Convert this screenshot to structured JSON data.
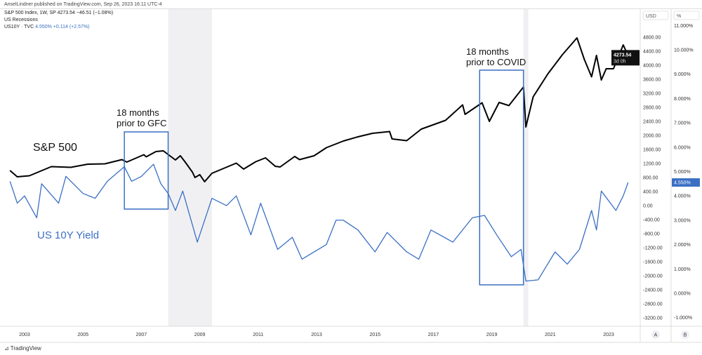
{
  "publisher": "AnselLindner published on TradingView.com, Sep 26, 2023 16:11 UTC-4",
  "legend": {
    "line1": "S&P 500 Index, 1W, SP  4273.54  −46.51 (−1.08%)",
    "line2": "US Recessions",
    "line3_name": "US10Y · TVC",
    "line3_value": "4.550%  +0.114 (+2.57%)"
  },
  "footer": {
    "logo": "TradingView"
  },
  "chart_data": {
    "type": "line",
    "x_ticks": [
      "2003",
      "2005",
      "2007",
      "2009",
      "2011",
      "2013",
      "2015",
      "2017",
      "2019",
      "2021",
      "2023"
    ],
    "left_axis": {
      "header": "USD",
      "ticks": [
        4800,
        4400,
        4000,
        3600,
        3200,
        2800,
        2400,
        2000,
        1600,
        1200,
        800,
        400,
        0,
        -400,
        -800,
        -1200,
        -1600,
        -2000,
        -2400,
        -2800,
        -3200
      ],
      "ylim": [
        -3400,
        5100
      ],
      "badge": "A"
    },
    "right_axis": {
      "header": "%",
      "ticks": [
        "11.000%",
        "10.000%",
        "9.000%",
        "8.000%",
        "7.000%",
        "6.000%",
        "5.000%",
        "4.000%",
        "3.000%",
        "2.000%",
        "1.000%",
        "0.000%",
        "-1.000%"
      ],
      "ylim": [
        -1.2,
        11.2
      ],
      "badge": "B"
    },
    "last_price_label": {
      "value": "4273.54",
      "countdown": "3d 0h"
    },
    "last_yield_label": "4.550%",
    "recessions": [
      [
        "2007-12",
        "2009-06"
      ],
      [
        "2020-02",
        "2020-04"
      ]
    ],
    "annotations": [
      {
        "text": [
          "18 months",
          "prior to GFC"
        ],
        "box": [
          "2006-06",
          "2007-12"
        ]
      },
      {
        "text": [
          "18 months",
          "prior to COVID"
        ],
        "box": [
          "2018-08",
          "2020-02"
        ]
      },
      {
        "text": [
          "S&P 500"
        ]
      },
      {
        "text": [
          "US 10Y Yield"
        ]
      }
    ],
    "series": [
      {
        "name": "S&P 500",
        "color": "#000000",
        "axis": "left",
        "points": [
          [
            "2002-07",
            1000
          ],
          [
            "2002-10",
            820
          ],
          [
            "2003-03",
            850
          ],
          [
            "2003-12",
            1110
          ],
          [
            "2004-08",
            1090
          ],
          [
            "2005-03",
            1180
          ],
          [
            "2005-10",
            1190
          ],
          [
            "2006-05",
            1310
          ],
          [
            "2006-07",
            1240
          ],
          [
            "2007-02",
            1450
          ],
          [
            "2007-03",
            1390
          ],
          [
            "2007-07",
            1540
          ],
          [
            "2007-10",
            1560
          ],
          [
            "2008-03",
            1300
          ],
          [
            "2008-05",
            1420
          ],
          [
            "2008-07",
            1240
          ],
          [
            "2008-10",
            950
          ],
          [
            "2008-11",
            800
          ],
          [
            "2009-01",
            880
          ],
          [
            "2009-03",
            680
          ],
          [
            "2009-06",
            920
          ],
          [
            "2010-04",
            1210
          ],
          [
            "2010-07",
            1040
          ],
          [
            "2010-12",
            1250
          ],
          [
            "2011-04",
            1360
          ],
          [
            "2011-08",
            1120
          ],
          [
            "2011-10",
            1100
          ],
          [
            "2012-04",
            1400
          ],
          [
            "2012-06",
            1310
          ],
          [
            "2012-12",
            1420
          ],
          [
            "2013-05",
            1650
          ],
          [
            "2013-12",
            1840
          ],
          [
            "2014-06",
            1960
          ],
          [
            "2014-12",
            2060
          ],
          [
            "2015-07",
            2110
          ],
          [
            "2015-08",
            1900
          ],
          [
            "2016-02",
            1850
          ],
          [
            "2016-08",
            2180
          ],
          [
            "2017-06",
            2430
          ],
          [
            "2018-01",
            2870
          ],
          [
            "2018-02",
            2600
          ],
          [
            "2018-09",
            2930
          ],
          [
            "2018-12",
            2400
          ],
          [
            "2019-04",
            2940
          ],
          [
            "2019-08",
            2850
          ],
          [
            "2020-02",
            3380
          ],
          [
            "2020-03",
            2240
          ],
          [
            "2020-06",
            3100
          ],
          [
            "2020-12",
            3750
          ],
          [
            "2021-06",
            4300
          ],
          [
            "2021-12",
            4780
          ],
          [
            "2022-03",
            4170
          ],
          [
            "2022-06",
            3670
          ],
          [
            "2022-08",
            4280
          ],
          [
            "2022-10",
            3580
          ],
          [
            "2022-12",
            3900
          ],
          [
            "2023-03",
            3900
          ],
          [
            "2023-07",
            4580
          ],
          [
            "2023-09",
            4273.54
          ]
        ]
      },
      {
        "name": "US 10Y Yield",
        "color": "#3a6fc4",
        "axis": "right",
        "points": [
          [
            "2002-07",
            4.6
          ],
          [
            "2002-10",
            3.7
          ],
          [
            "2003-01",
            4.0
          ],
          [
            "2003-06",
            3.1
          ],
          [
            "2003-08",
            4.5
          ],
          [
            "2004-03",
            3.7
          ],
          [
            "2004-06",
            4.8
          ],
          [
            "2005-01",
            4.1
          ],
          [
            "2005-06",
            3.9
          ],
          [
            "2005-11",
            4.6
          ],
          [
            "2006-06",
            5.2
          ],
          [
            "2006-09",
            4.6
          ],
          [
            "2007-01",
            4.8
          ],
          [
            "2007-06",
            5.3
          ],
          [
            "2007-09",
            4.5
          ],
          [
            "2007-12",
            4.1
          ],
          [
            "2008-03",
            3.4
          ],
          [
            "2008-06",
            4.2
          ],
          [
            "2008-12",
            2.1
          ],
          [
            "2009-06",
            3.9
          ],
          [
            "2009-12",
            3.6
          ],
          [
            "2010-04",
            4.0
          ],
          [
            "2010-10",
            2.4
          ],
          [
            "2011-02",
            3.7
          ],
          [
            "2011-09",
            1.8
          ],
          [
            "2012-03",
            2.3
          ],
          [
            "2012-07",
            1.4
          ],
          [
            "2013-05",
            2.0
          ],
          [
            "2013-09",
            3.0
          ],
          [
            "2013-12",
            3.0
          ],
          [
            "2014-06",
            2.6
          ],
          [
            "2015-01",
            1.7
          ],
          [
            "2015-06",
            2.5
          ],
          [
            "2016-02",
            1.7
          ],
          [
            "2016-07",
            1.4
          ],
          [
            "2016-12",
            2.6
          ],
          [
            "2017-09",
            2.1
          ],
          [
            "2018-05",
            3.1
          ],
          [
            "2018-10",
            3.2
          ],
          [
            "2019-03",
            2.4
          ],
          [
            "2019-09",
            1.5
          ],
          [
            "2020-01",
            1.8
          ],
          [
            "2020-03",
            0.5
          ],
          [
            "2020-08",
            0.55
          ],
          [
            "2021-03",
            1.7
          ],
          [
            "2021-08",
            1.2
          ],
          [
            "2022-01",
            1.8
          ],
          [
            "2022-06",
            3.4
          ],
          [
            "2022-08",
            2.6
          ],
          [
            "2022-10",
            4.2
          ],
          [
            "2023-04",
            3.4
          ],
          [
            "2023-07",
            4.0
          ],
          [
            "2023-09",
            4.55
          ]
        ]
      }
    ]
  }
}
